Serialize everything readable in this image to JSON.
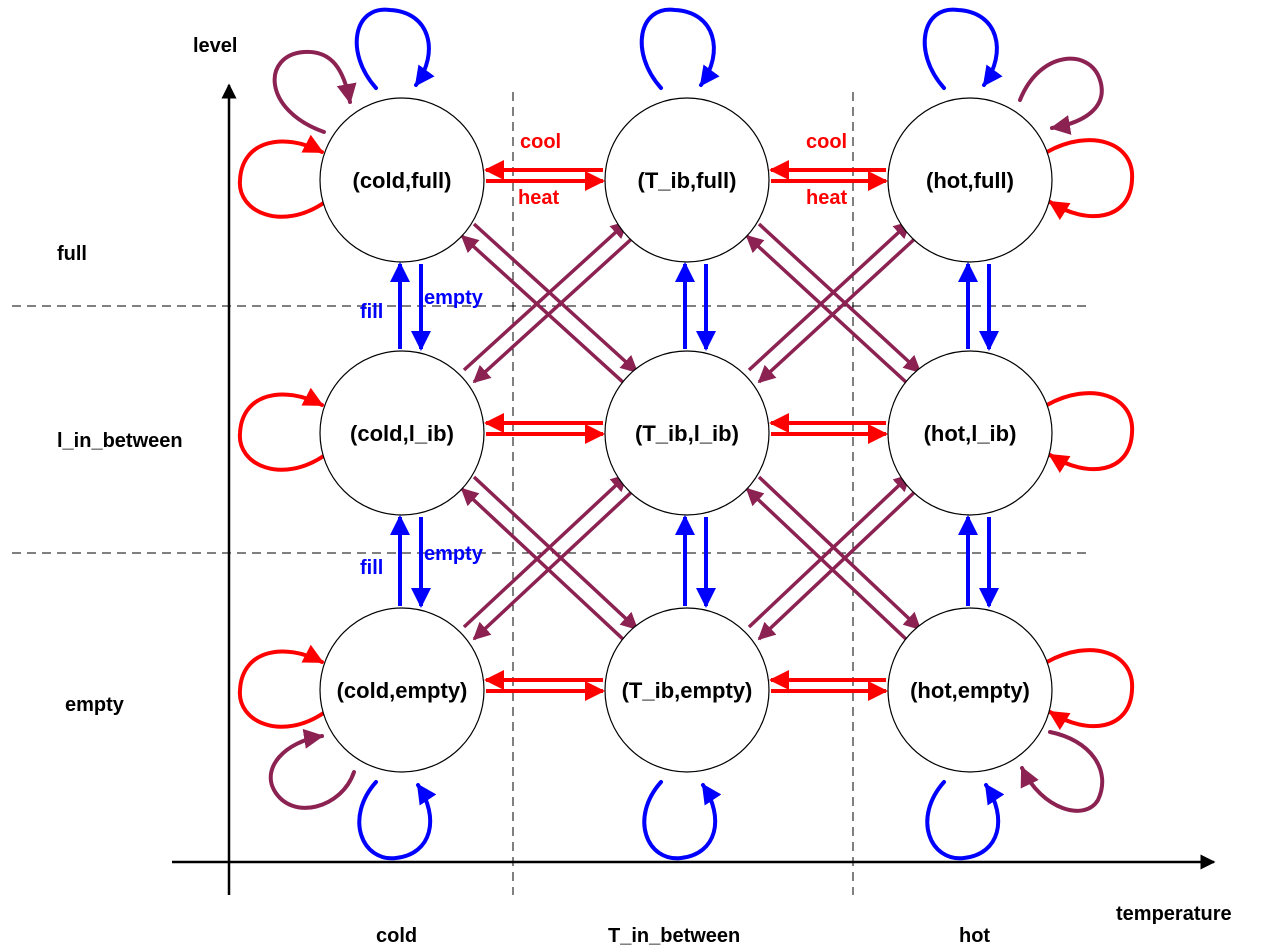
{
  "colors": {
    "heat_cool": "#ff0000",
    "fill_empty": "#0000ff",
    "diagonal": "#8b2252",
    "circle_stroke": "#000000",
    "grid": "#000000"
  },
  "axes": {
    "y_title": "level",
    "x_title": "temperature",
    "rows": [
      "full",
      "l_in_between",
      "empty"
    ],
    "columns": [
      "cold",
      "T_in_between",
      "hot"
    ]
  },
  "states": [
    {
      "row": 0,
      "col": 0,
      "label": "(cold,full)"
    },
    {
      "row": 0,
      "col": 1,
      "label": "(T_ib,full)"
    },
    {
      "row": 0,
      "col": 2,
      "label": "(hot,full)"
    },
    {
      "row": 1,
      "col": 0,
      "label": "(cold,l_ib)"
    },
    {
      "row": 1,
      "col": 1,
      "label": "(T_ib,l_ib)"
    },
    {
      "row": 1,
      "col": 2,
      "label": "(hot,l_ib)"
    },
    {
      "row": 2,
      "col": 0,
      "label": "(cold,empty)"
    },
    {
      "row": 2,
      "col": 1,
      "label": "(T_ib,empty)"
    },
    {
      "row": 2,
      "col": 2,
      "label": "(hot,empty)"
    }
  ],
  "transition_labels": {
    "cool_1": "cool",
    "heat_1": "heat",
    "cool_2": "cool",
    "heat_2": "heat",
    "fill_1": "fill",
    "empty_1": "empty",
    "fill_2": "fill",
    "empty_2": "empty"
  }
}
